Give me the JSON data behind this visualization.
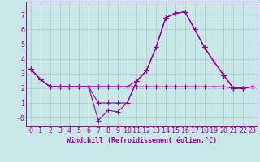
{
  "xlabel": "Windchill (Refroidissement éolien,°C)",
  "bg_color": "#c8e8e8",
  "line_color": "#990099",
  "grid_color": "#b0c8c8",
  "hours": [
    0,
    1,
    2,
    3,
    4,
    5,
    6,
    7,
    8,
    9,
    10,
    11,
    12,
    13,
    14,
    15,
    16,
    17,
    18,
    19,
    20,
    21,
    22,
    23
  ],
  "line1": [
    3.3,
    2.6,
    2.1,
    2.1,
    2.1,
    2.1,
    2.1,
    -0.2,
    0.5,
    0.4,
    1.0,
    2.5,
    3.2,
    4.8,
    6.8,
    7.1,
    7.2,
    6.0,
    4.8,
    3.8,
    2.9,
    2.0,
    2.0,
    2.1
  ],
  "line2": [
    3.3,
    2.6,
    2.1,
    2.1,
    2.1,
    2.1,
    2.1,
    1.0,
    1.0,
    1.0,
    1.0,
    2.5,
    3.2,
    4.8,
    6.8,
    7.1,
    7.2,
    6.0,
    4.8,
    3.8,
    2.9,
    2.0,
    2.0,
    2.1
  ],
  "line3": [
    3.3,
    2.6,
    2.1,
    2.1,
    2.1,
    2.1,
    2.1,
    2.1,
    2.1,
    2.1,
    2.1,
    2.5,
    3.2,
    4.8,
    6.8,
    7.1,
    7.2,
    6.0,
    4.8,
    3.8,
    2.9,
    2.0,
    2.0,
    2.1
  ],
  "line4": [
    3.3,
    2.6,
    2.1,
    2.1,
    2.1,
    2.1,
    2.1,
    2.1,
    2.1,
    2.1,
    2.1,
    2.1,
    2.1,
    2.1,
    2.1,
    2.1,
    2.1,
    2.1,
    2.1,
    2.1,
    2.1,
    2.0,
    2.0,
    2.1
  ],
  "ylim": [
    -0.6,
    7.9
  ],
  "xlim": [
    -0.5,
    23.5
  ],
  "yticks": [
    0,
    1,
    2,
    3,
    4,
    5,
    6,
    7
  ],
  "ytick_labels": [
    "-0",
    "1",
    "2",
    "3",
    "4",
    "5",
    "6",
    "7"
  ],
  "xlabel_fontsize": 6.0,
  "tick_fontsize": 6.0,
  "marker_size": 2.0,
  "line_width": 0.8
}
